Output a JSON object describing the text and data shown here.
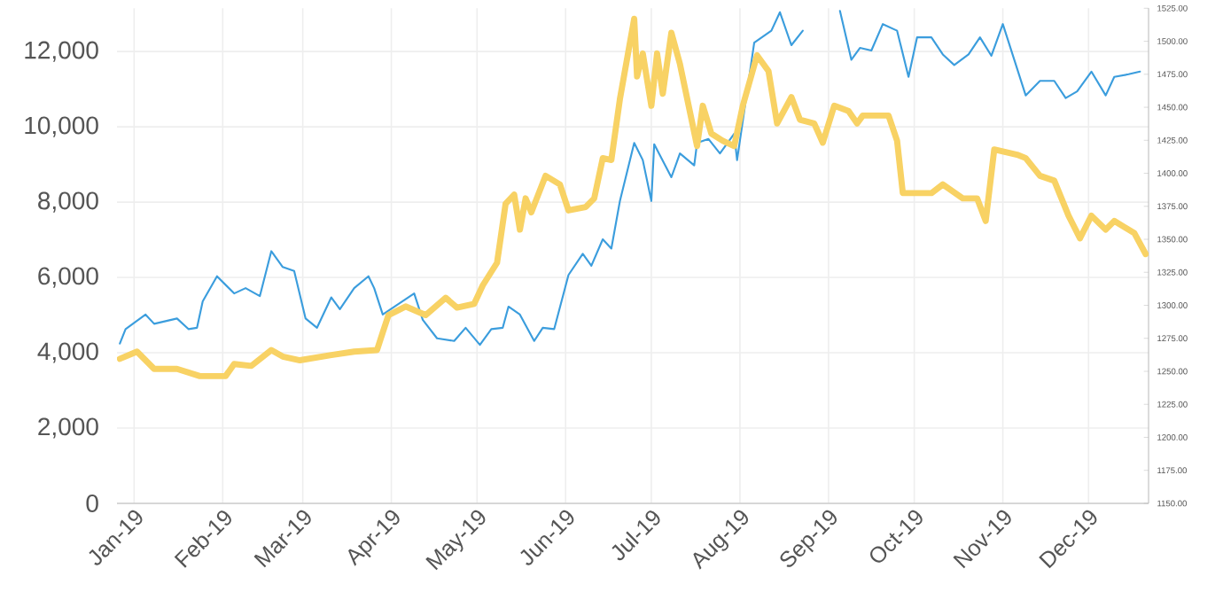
{
  "chart_data": {
    "type": "line",
    "grid": true,
    "xlim": [
      "2018-12-26",
      "2019-12-22"
    ],
    "xticks": [
      {
        "value": "2019-01-01",
        "label": "Jan-19"
      },
      {
        "value": "2019-02-01",
        "label": "Feb-19"
      },
      {
        "value": "2019-03-01",
        "label": "Mar-19"
      },
      {
        "value": "2019-04-01",
        "label": "Apr-19"
      },
      {
        "value": "2019-05-01",
        "label": "May-19"
      },
      {
        "value": "2019-06-01",
        "label": "Jun-19"
      },
      {
        "value": "2019-07-01",
        "label": "Jul-19"
      },
      {
        "value": "2019-08-01",
        "label": "Aug-19"
      },
      {
        "value": "2019-09-01",
        "label": "Sep-19"
      },
      {
        "value": "2019-10-01",
        "label": "Oct-19"
      },
      {
        "value": "2019-11-01",
        "label": "Nov-19"
      },
      {
        "value": "2019-12-01",
        "label": "Dec-19"
      }
    ],
    "ylim": [
      0,
      13150
    ],
    "yticks": [
      0,
      {
        "value": 2000,
        "label": "2,000"
      },
      {
        "value": 4000,
        "label": "4,000"
      },
      {
        "value": 6000,
        "label": "6,000"
      },
      {
        "value": 8000,
        "label": "8,000"
      },
      {
        "value": 10000,
        "label": "10,000"
      },
      {
        "value": 12000,
        "label": "12,000"
      }
    ],
    "y2lim": [
      1150,
      1525
    ],
    "y2ticks": [
      {
        "value": 1150,
        "label": "1150.00"
      },
      {
        "value": 1175,
        "label": "1175.00"
      },
      {
        "value": 1200,
        "label": "1200.00"
      },
      {
        "value": 1225,
        "label": "1225.00"
      },
      {
        "value": 1250,
        "label": "1250.00"
      },
      {
        "value": 1275,
        "label": "1275.00"
      },
      {
        "value": 1300,
        "label": "1300.00"
      },
      {
        "value": 1325,
        "label": "1325.00"
      },
      {
        "value": 1350,
        "label": "1350.00"
      },
      {
        "value": 1375,
        "label": "1375.00"
      },
      {
        "value": 1400,
        "label": "1400.00"
      },
      {
        "value": 1425,
        "label": "1425.00"
      },
      {
        "value": 1450,
        "label": "1450.00"
      },
      {
        "value": 1475,
        "label": "1475.00"
      },
      {
        "value": 1500,
        "label": "1500.00"
      },
      {
        "value": 1525,
        "label": "1525.00"
      }
    ],
    "series": [
      {
        "color": "#3b9ddd",
        "axis": "y2",
        "x": [
          "2018-12-27",
          "2018-12-29",
          "2019-01-05",
          "2019-01-08",
          "2019-01-16",
          "2019-01-20",
          "2019-01-23",
          "2019-01-25",
          "2019-01-30",
          "2019-02-05",
          "2019-02-09",
          "2019-02-14",
          "2019-02-18",
          "2019-02-22",
          "2019-02-26",
          "2019-03-02",
          "2019-03-06",
          "2019-03-11",
          "2019-03-14",
          "2019-03-19",
          "2019-03-24",
          "2019-03-26",
          "2019-03-29",
          "2019-04-09",
          "2019-04-12",
          "2019-04-17",
          "2019-04-23",
          "2019-04-27",
          "2019-05-02",
          "2019-05-06",
          "2019-05-10",
          "2019-05-12",
          "2019-05-16",
          "2019-05-21",
          "2019-05-24",
          "2019-05-28",
          "2019-06-02",
          "2019-06-07",
          "2019-06-10",
          "2019-06-14",
          "2019-06-17",
          "2019-06-20",
          "2019-06-25",
          "2019-06-28",
          "2019-07-01",
          "2019-07-02",
          "2019-07-08",
          "2019-07-11",
          "2019-07-16",
          "2019-07-17",
          "2019-07-21",
          "2019-07-25",
          "2019-07-30",
          "2019-07-31",
          "2019-08-06",
          "2019-08-12",
          "2019-08-15",
          "2019-08-19",
          "2019-08-23",
          "2019-08-26",
          "2019-08-31",
          "2019-09-05",
          "2019-09-09",
          "2019-09-12",
          "2019-09-16",
          "2019-09-20",
          "2019-09-25",
          "2019-09-29",
          "2019-10-02",
          "2019-10-07",
          "2019-10-11",
          "2019-10-15",
          "2019-10-20",
          "2019-10-24",
          "2019-10-28",
          "2019-11-01",
          "2019-11-05",
          "2019-11-09",
          "2019-11-14",
          "2019-11-19",
          "2019-11-23",
          "2019-11-27",
          "2019-12-02",
          "2019-12-07",
          "2019-12-10",
          "2019-12-15",
          "2019-12-19"
        ],
        "values": [
          1271,
          1282,
          1293,
          1286,
          1290,
          1282,
          1283,
          1303,
          1322,
          1309,
          1313,
          1307,
          1341,
          1329,
          1326,
          1290,
          1283,
          1306,
          1297,
          1313,
          1322,
          1313,
          1293,
          1309,
          1289,
          1275,
          1273,
          1283,
          1270,
          1282,
          1283,
          1299,
          1293,
          1273,
          1283,
          1282,
          1323,
          1339,
          1330,
          1350,
          1343,
          1379,
          1423,
          1410,
          1379,
          1422,
          1397,
          1415,
          1406,
          1423,
          1426,
          1415,
          1430,
          1410,
          1499,
          1508,
          1522,
          1497,
          1508,
          null,
          null,
          1523,
          1486,
          1495,
          1493,
          1513,
          1508,
          1473,
          1503,
          1503,
          1490,
          1482,
          1490,
          1503,
          1489,
          1513,
          1486,
          1459,
          1470,
          1470,
          1457,
          1462,
          1477,
          1459,
          1473,
          1475,
          1477
        ]
      },
      {
        "color": "#f8d264",
        "axis": "y",
        "x": [
          "2018-12-27",
          "2019-01-02",
          "2019-01-08",
          "2019-01-16",
          "2019-01-24",
          "2019-02-02",
          "2019-02-05",
          "2019-02-11",
          "2019-02-18",
          "2019-02-22",
          "2019-02-28",
          "2019-03-11",
          "2019-03-19",
          "2019-03-27",
          "2019-03-29",
          "2019-03-31",
          "2019-04-06",
          "2019-04-13",
          "2019-04-20",
          "2019-04-24",
          "2019-04-30",
          "2019-05-03",
          "2019-05-08",
          "2019-05-11",
          "2019-05-14",
          "2019-05-16",
          "2019-05-18",
          "2019-05-20",
          "2019-05-25",
          "2019-05-30",
          "2019-06-02",
          "2019-06-08",
          "2019-06-11",
          "2019-06-14",
          "2019-06-17",
          "2019-06-20",
          "2019-06-25",
          "2019-06-26",
          "2019-06-28",
          "2019-07-01",
          "2019-07-03",
          "2019-07-05",
          "2019-07-08",
          "2019-07-11",
          "2019-07-17",
          "2019-07-19",
          "2019-07-22",
          "2019-07-26",
          "2019-07-30",
          "2019-08-02",
          "2019-08-07",
          "2019-08-11",
          "2019-08-14",
          "2019-08-19",
          "2019-08-22",
          "2019-08-27",
          "2019-08-30",
          "2019-09-03",
          "2019-09-08",
          "2019-09-11",
          "2019-09-13",
          "2019-09-22",
          "2019-09-25",
          "2019-09-27",
          "2019-10-01",
          "2019-10-07",
          "2019-10-11",
          "2019-10-18",
          "2019-10-23",
          "2019-10-26",
          "2019-10-29",
          "2019-11-06",
          "2019-11-09",
          "2019-11-14",
          "2019-11-19",
          "2019-11-24",
          "2019-11-28",
          "2019-12-02",
          "2019-12-07",
          "2019-12-10",
          "2019-12-17",
          "2019-12-21"
        ],
        "values": [
          3840,
          4030,
          3570,
          3570,
          3380,
          3380,
          3700,
          3650,
          4070,
          3900,
          3800,
          3940,
          4030,
          4070,
          4540,
          5000,
          5230,
          5000,
          5460,
          5200,
          5300,
          5790,
          6390,
          7960,
          8200,
          7270,
          8100,
          7730,
          8700,
          8470,
          7780,
          7870,
          8100,
          9170,
          9120,
          10740,
          12870,
          11340,
          11950,
          10560,
          11950,
          10880,
          12500,
          11670,
          9490,
          10560,
          9820,
          9630,
          9490,
          10560,
          11900,
          11480,
          10090,
          10790,
          10190,
          10090,
          9580,
          10560,
          10420,
          10090,
          10300,
          10300,
          9630,
          8240,
          8240,
          8240,
          8470,
          8100,
          8100,
          7500,
          9400,
          9260,
          9170,
          8700,
          8570,
          7640,
          7040,
          7640,
          7270,
          7500,
          7180,
          6620
        ]
      }
    ]
  }
}
